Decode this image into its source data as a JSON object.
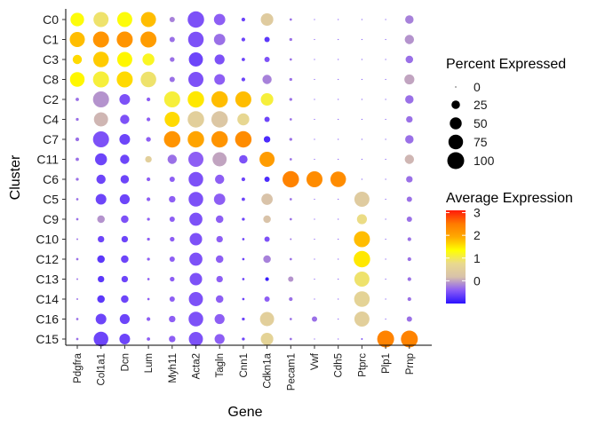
{
  "chart_data": {
    "type": "dotplot",
    "xlabel": "Gene",
    "ylabel": "Cluster",
    "genes": [
      "Pdgfra",
      "Col1a1",
      "Dcn",
      "Lum",
      "Myh11",
      "Acta2",
      "Tagln",
      "Cnn1",
      "Cdkn1a",
      "Pecam1",
      "Vwf",
      "Cdh5",
      "Ptprc",
      "Plp1",
      "Prnp"
    ],
    "clusters": [
      "C0",
      "C1",
      "C3",
      "C8",
      "C2",
      "C4",
      "C7",
      "C11",
      "C6",
      "C5",
      "C9",
      "C10",
      "C12",
      "C13",
      "C14",
      "C16",
      "C15"
    ],
    "percent_expressed": [
      [
        65,
        80,
        80,
        80,
        10,
        95,
        45,
        5,
        55,
        2,
        0,
        0,
        0,
        0,
        25
      ],
      [
        80,
        90,
        90,
        90,
        10,
        85,
        45,
        5,
        10,
        3,
        0,
        0,
        0,
        0,
        30
      ],
      [
        30,
        85,
        80,
        50,
        8,
        70,
        35,
        4,
        10,
        2,
        0,
        0,
        0,
        0,
        20
      ],
      [
        75,
        90,
        90,
        85,
        10,
        80,
        40,
        5,
        30,
        3,
        0,
        0,
        0,
        0,
        35
      ],
      [
        4,
        90,
        40,
        5,
        90,
        95,
        95,
        90,
        55,
        3,
        0,
        0,
        0,
        0,
        25
      ],
      [
        3,
        70,
        30,
        5,
        80,
        95,
        95,
        50,
        10,
        2,
        0,
        0,
        0,
        0,
        15
      ],
      [
        5,
        90,
        40,
        8,
        95,
        95,
        95,
        95,
        15,
        3,
        0,
        0,
        0,
        0,
        25
      ],
      [
        4,
        50,
        30,
        15,
        30,
        80,
        70,
        25,
        80,
        2,
        0,
        0,
        0,
        0,
        30
      ],
      [
        3,
        30,
        25,
        5,
        10,
        75,
        30,
        5,
        10,
        95,
        90,
        85,
        0,
        0,
        15
      ],
      [
        2,
        40,
        35,
        5,
        15,
        75,
        45,
        4,
        45,
        2,
        0,
        0,
        80,
        0,
        10
      ],
      [
        2,
        20,
        20,
        3,
        10,
        60,
        20,
        3,
        20,
        2,
        0,
        0,
        35,
        0,
        10
      ],
      [
        1,
        15,
        15,
        3,
        8,
        55,
        15,
        2,
        10,
        1,
        0,
        0,
        90,
        0,
        5
      ],
      [
        2,
        20,
        20,
        3,
        10,
        60,
        20,
        2,
        20,
        2,
        0,
        0,
        95,
        0,
        5
      ],
      [
        1,
        15,
        15,
        2,
        8,
        55,
        15,
        2,
        5,
        10,
        0,
        0,
        80,
        0,
        5
      ],
      [
        1,
        20,
        20,
        2,
        10,
        70,
        20,
        2,
        10,
        5,
        0,
        0,
        85,
        0,
        5
      ],
      [
        2,
        40,
        35,
        5,
        15,
        75,
        35,
        3,
        70,
        2,
        10,
        0,
        80,
        0,
        10
      ],
      [
        2,
        75,
        40,
        4,
        15,
        70,
        35,
        3,
        55,
        2,
        0,
        0,
        1,
        100,
        100
      ]
    ],
    "average_expression": [
      [
        1.3,
        0.9,
        1.3,
        1.8,
        -0.2,
        -0.5,
        -0.4,
        -0.6,
        0.4,
        -0.3,
        -0.5,
        -0.5,
        -0.5,
        -0.5,
        -0.2
      ],
      [
        1.8,
        2.2,
        2.2,
        2.1,
        -0.3,
        -0.5,
        -0.3,
        -0.6,
        -0.7,
        -0.3,
        -0.5,
        -0.5,
        -0.5,
        -0.5,
        -0.1
      ],
      [
        1.6,
        1.7,
        1.4,
        1.2,
        -0.3,
        -0.6,
        -0.5,
        -0.6,
        -0.5,
        -0.3,
        -0.5,
        -0.5,
        -0.5,
        -0.5,
        -0.3
      ],
      [
        1.4,
        1.1,
        1.6,
        0.9,
        -0.3,
        -0.5,
        -0.4,
        -0.6,
        -0.2,
        -0.3,
        -0.5,
        -0.5,
        -0.5,
        -0.5,
        0.0
      ],
      [
        -0.3,
        -0.1,
        -0.5,
        -0.4,
        1.1,
        1.5,
        1.8,
        1.8,
        1.1,
        -0.3,
        -0.5,
        -0.5,
        -0.5,
        -0.5,
        -0.3
      ],
      [
        -0.3,
        0.1,
        -0.5,
        -0.4,
        1.6,
        0.5,
        0.3,
        0.7,
        -0.6,
        -0.3,
        -0.5,
        -0.5,
        -0.5,
        -0.5,
        -0.3
      ],
      [
        -0.3,
        -0.5,
        -0.6,
        -0.4,
        2.2,
        2.0,
        2.2,
        2.3,
        -0.8,
        -0.3,
        -0.5,
        -0.5,
        -0.5,
        -0.5,
        -0.3
      ],
      [
        -0.3,
        -0.6,
        -0.6,
        0.5,
        -0.3,
        -0.4,
        0.0,
        -0.5,
        2.1,
        -0.3,
        -0.5,
        -0.5,
        -0.5,
        -0.5,
        0.1
      ],
      [
        -0.3,
        -0.6,
        -0.6,
        -0.4,
        -0.4,
        -0.5,
        -0.4,
        -0.6,
        -0.8,
        2.4,
        2.3,
        2.3,
        -0.5,
        -0.5,
        -0.3
      ],
      [
        -0.3,
        -0.6,
        -0.6,
        -0.4,
        -0.4,
        -0.5,
        -0.4,
        -0.6,
        0.2,
        -0.3,
        -0.5,
        -0.5,
        0.4,
        -0.5,
        -0.3
      ],
      [
        -0.3,
        -0.1,
        -0.5,
        -0.4,
        -0.4,
        -0.5,
        -0.4,
        -0.6,
        0.2,
        -0.3,
        -0.5,
        -0.5,
        0.8,
        -0.5,
        -0.3
      ],
      [
        -0.3,
        -0.6,
        -0.6,
        -0.4,
        -0.4,
        -0.5,
        -0.4,
        -0.6,
        -0.5,
        -0.3,
        -0.5,
        -0.5,
        1.8,
        -0.5,
        -0.3
      ],
      [
        -0.3,
        -0.7,
        -0.6,
        -0.4,
        -0.4,
        -0.5,
        -0.4,
        -0.6,
        -0.2,
        -0.3,
        -0.5,
        -0.5,
        1.5,
        -0.5,
        -0.3
      ],
      [
        -0.3,
        -0.7,
        -0.6,
        -0.4,
        -0.4,
        -0.5,
        -0.4,
        -0.6,
        -0.9,
        -0.1,
        -0.5,
        -0.5,
        0.9,
        -0.5,
        -0.3
      ],
      [
        -0.3,
        -0.7,
        -0.6,
        -0.4,
        -0.4,
        -0.5,
        -0.4,
        -0.6,
        -0.4,
        -0.3,
        -0.5,
        -0.5,
        0.6,
        -0.5,
        -0.3
      ],
      [
        -0.3,
        -0.6,
        -0.6,
        -0.4,
        -0.4,
        -0.5,
        -0.4,
        -0.6,
        0.5,
        -0.3,
        -0.3,
        -0.5,
        0.5,
        -0.5,
        -0.3
      ],
      [
        -0.3,
        -0.6,
        -0.6,
        -0.4,
        -0.4,
        -0.5,
        -0.4,
        -0.6,
        0.6,
        -0.3,
        -0.5,
        -0.5,
        -0.5,
        2.4,
        2.4
      ]
    ],
    "size_legend": {
      "title": "Percent Expressed",
      "values": [
        0,
        25,
        50,
        75,
        100
      ],
      "labels": [
        "0",
        "25",
        "50",
        "75",
        "100"
      ]
    },
    "color_legend": {
      "title": "Average Expression",
      "min": -1.0,
      "max": 3.1,
      "ticks": [
        0,
        1,
        2,
        3
      ],
      "labels": [
        "0",
        "1",
        "2",
        "3"
      ],
      "colors": [
        "#2b12ff",
        "#8b5cf6",
        "#d8c2aa",
        "#e9d98f",
        "#ffff00",
        "#ffaa00",
        "#ff7a00",
        "#ff1a0a"
      ]
    },
    "grid": false,
    "legend_position": "right"
  }
}
